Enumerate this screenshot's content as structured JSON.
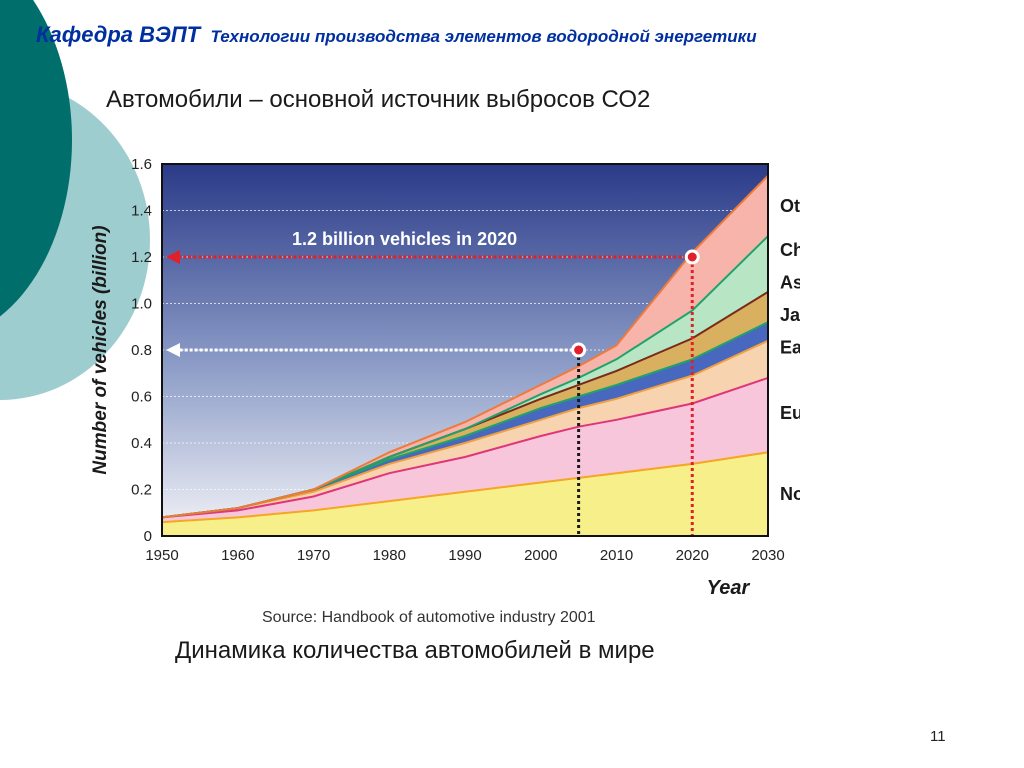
{
  "slide": {
    "department": "Кафедра ВЭПТ",
    "course": "Технологии производства элементов водородной энергетики",
    "subtitle": "Автомобили – основной источник выбросов СО2",
    "caption": "Динамика количества автомобилей в мире",
    "slide_number": "11"
  },
  "colors": {
    "header": "#002fa0",
    "deco_dark": "#006e6a",
    "deco_light": "#9ecdd0"
  },
  "chart_data": {
    "type": "area",
    "stacked": true,
    "title": "",
    "xlabel": "Year",
    "ylabel": "Number of vehicles (billion)",
    "source": "Source: Handbook of automotive industry 2001",
    "xlim": [
      1950,
      2030
    ],
    "ylim": [
      0,
      1.6
    ],
    "x_ticks": [
      "1950",
      "1960",
      "1970",
      "1980",
      "1990",
      "2000",
      "2010",
      "2020",
      "2030"
    ],
    "y_ticks": [
      "0",
      "0.2",
      "0.4",
      "0.6",
      "0.8",
      "1.0",
      "1.2",
      "1.4",
      "1.6"
    ],
    "grid": true,
    "legend_position": "right",
    "x": [
      1950,
      1960,
      1970,
      1980,
      1990,
      2000,
      2005,
      2010,
      2020,
      2030
    ],
    "series": [
      {
        "name": "North America",
        "values": [
          0.06,
          0.08,
          0.11,
          0.15,
          0.19,
          0.23,
          0.25,
          0.27,
          0.31,
          0.36
        ],
        "fill": "#f7ef8a",
        "line": "#f5a623"
      },
      {
        "name": "Europe",
        "values": [
          0.02,
          0.03,
          0.06,
          0.12,
          0.15,
          0.2,
          0.22,
          0.23,
          0.26,
          0.32
        ],
        "fill": "#f8c6da",
        "line": "#e0357a"
      },
      {
        "name": "East Europe",
        "values": [
          0.0,
          0.01,
          0.02,
          0.04,
          0.06,
          0.07,
          0.08,
          0.09,
          0.12,
          0.16
        ],
        "fill": "#f7d3b0",
        "line": "#f0a040"
      },
      {
        "name": "Japan",
        "values": [
          0.0,
          0.0,
          0.01,
          0.02,
          0.03,
          0.05,
          0.05,
          0.06,
          0.07,
          0.08
        ],
        "fill": "#4868c0",
        "line": "#1fa36b"
      },
      {
        "name": "Asia",
        "values": [
          0.0,
          0.0,
          0.0,
          0.01,
          0.03,
          0.04,
          0.05,
          0.06,
          0.09,
          0.13
        ],
        "fill": "#d8b060",
        "line": "#7a2a1a"
      },
      {
        "name": "China",
        "values": [
          0.0,
          0.0,
          0.0,
          0.0,
          0.0,
          0.02,
          0.03,
          0.05,
          0.12,
          0.24
        ],
        "fill": "#b8e6c4",
        "line": "#1fa36b"
      },
      {
        "name": "Others",
        "values": [
          0.0,
          0.0,
          0.0,
          0.02,
          0.03,
          0.04,
          0.05,
          0.06,
          0.25,
          0.26
        ],
        "fill": "#f6b4ab",
        "line": "#f07a3a"
      }
    ],
    "annotations": [
      {
        "text": "1.2 billion vehicles in 2020",
        "x": 2020,
        "y": 1.2,
        "arrow_color": "#e0202a"
      },
      {
        "text": "",
        "x": 2005,
        "y": 0.8,
        "arrow_color": "#ffffff"
      }
    ]
  }
}
